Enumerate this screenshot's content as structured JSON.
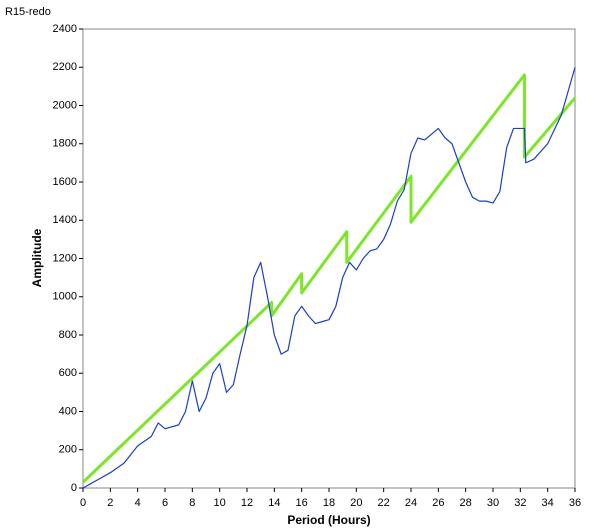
{
  "chart_data": {
    "type": "line",
    "title": "R15-redo",
    "x_label": "Period (Hours)",
    "y_label": "Amplitude",
    "xlim": [
      0,
      36
    ],
    "ylim": [
      0,
      2400
    ],
    "xticks": [
      0,
      2,
      4,
      6,
      8,
      10,
      12,
      14,
      16,
      18,
      20,
      22,
      24,
      26,
      28,
      30,
      32,
      34,
      36
    ],
    "yticks": [
      0,
      200,
      400,
      600,
      800,
      1000,
      1200,
      1400,
      1600,
      1800,
      2000,
      2200,
      2400
    ],
    "grid": false,
    "series": [
      {
        "color": "#1a3fc4",
        "x": [
          0,
          0.5,
          1,
          2,
          3,
          4,
          5,
          5.5,
          6,
          7,
          7.5,
          8,
          8.5,
          9,
          9.5,
          10,
          10.5,
          11,
          11.5,
          12,
          12.5,
          13,
          13.5,
          14,
          14.5,
          15,
          15.5,
          16,
          16.5,
          17,
          17.5,
          18,
          18.5,
          19,
          19.5,
          20,
          20.5,
          21,
          21.5,
          22,
          22.5,
          23,
          23.5,
          24,
          24.5,
          25,
          25.5,
          26,
          26.5,
          27,
          27.5,
          28,
          28.5,
          29,
          29.5,
          30,
          30.5,
          31,
          31.5,
          32,
          32.3,
          32.4,
          33,
          34,
          35,
          36
        ],
        "values": [
          0,
          20,
          40,
          80,
          130,
          220,
          270,
          340,
          310,
          330,
          400,
          560,
          400,
          470,
          600,
          650,
          500,
          540,
          700,
          850,
          1100,
          1180,
          1000,
          800,
          700,
          720,
          900,
          950,
          900,
          860,
          870,
          880,
          950,
          1100,
          1180,
          1140,
          1200,
          1240,
          1250,
          1300,
          1380,
          1500,
          1560,
          1750,
          1830,
          1820,
          1850,
          1880,
          1830,
          1800,
          1700,
          1600,
          1520,
          1500,
          1500,
          1490,
          1550,
          1780,
          1880,
          1880,
          1880,
          1700,
          1720,
          1800,
          1950,
          2200
        ]
      },
      {
        "color": "#7de52a",
        "x": [
          0,
          13.8,
          13.8,
          16,
          16,
          19.3,
          19.3,
          24,
          24,
          32.3,
          32.3,
          36
        ],
        "values": [
          30,
          970,
          900,
          1120,
          1020,
          1340,
          1180,
          1630,
          1390,
          2160,
          1730,
          2040
        ]
      }
    ]
  }
}
